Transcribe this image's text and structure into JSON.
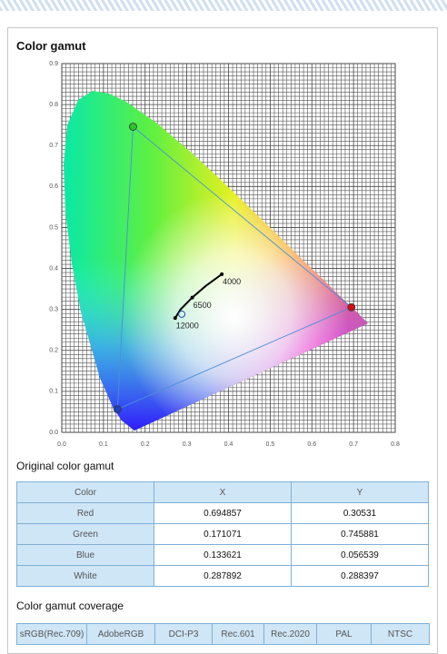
{
  "header": {
    "title": "Color gamut"
  },
  "chart_data": {
    "type": "chromaticity",
    "xlim": [
      0,
      0.8
    ],
    "ylim": [
      0,
      0.9
    ],
    "xticks": [
      {
        "value": 0,
        "label": "0.0"
      },
      0.1,
      0.2,
      0.3,
      0.4,
      0.5,
      0.6,
      0.7,
      0.8
    ],
    "yticks": [
      {
        "value": 0,
        "label": "0.0"
      },
      0.1,
      0.2,
      0.3,
      0.4,
      0.5,
      0.6,
      0.7,
      0.8,
      0.9
    ],
    "grid": true,
    "gamut": {
      "x": [
        0.694857,
        0.171071,
        0.133621
      ],
      "y": [
        0.30531,
        0.745881,
        0.056539
      ],
      "colors": [
        "#d01010",
        "#30c030",
        "#2040c0"
      ],
      "line_color": "#4a8fd8"
    },
    "white_point": {
      "x": 0.287892,
      "y": 0.288397,
      "color": "#2050a0"
    },
    "locus": {
      "x": [
        0.272,
        0.285,
        0.313,
        0.345,
        0.384
      ],
      "y": [
        0.279,
        0.3,
        0.329,
        0.357,
        0.386
      ],
      "color": "#000000"
    },
    "cct": {
      "labels": [
        "12000",
        "6500",
        "4000"
      ],
      "x": [
        0.272,
        0.313,
        0.384
      ],
      "y": [
        0.279,
        0.329,
        0.386
      ]
    }
  },
  "table": {
    "title": "Original color gamut",
    "headers": [
      "Color",
      "X",
      "Y"
    ],
    "rows": [
      [
        "Red",
        0.694857,
        0.30531
      ],
      [
        "Green",
        0.171071,
        0.745881
      ],
      [
        "Blue",
        0.133621,
        0.056539
      ],
      [
        "White",
        0.287892,
        0.288397
      ]
    ]
  },
  "coverage": {
    "title": "Color gamut coverage",
    "headers": [
      "sRGB(Rec.709)",
      "AdobeRGB",
      "DCI-P3",
      "Rec.601",
      "Rec.2020",
      "PAL",
      "NTSC"
    ]
  }
}
